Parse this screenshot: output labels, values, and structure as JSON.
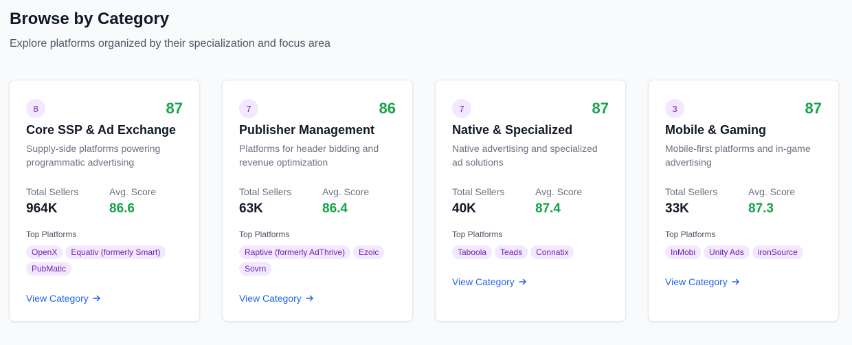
{
  "page": {
    "title": "Browse by Category",
    "subtitle": "Explore platforms organized by their specialization and focus area"
  },
  "labels": {
    "total_sellers": "Total Sellers",
    "avg_score": "Avg. Score",
    "top_platforms": "Top Platforms",
    "view_category": "View Category"
  },
  "colors": {
    "score_green": "#16a34a",
    "badge_bg": "#f3e8ff",
    "badge_text": "#6b21a8",
    "link_blue": "#2563eb"
  },
  "categories": [
    {
      "count": "8",
      "score": "87",
      "title": "Core SSP & Ad Exchange",
      "description": "Supply-side platforms powering programmatic advertising",
      "total_sellers": "964K",
      "avg_score": "86.6",
      "platforms": [
        "OpenX",
        "Equativ (formerly Smart)",
        "PubMatic"
      ]
    },
    {
      "count": "7",
      "score": "86",
      "title": "Publisher Management",
      "description": "Platforms for header bidding and revenue optimization",
      "total_sellers": "63K",
      "avg_score": "86.4",
      "platforms": [
        "Raptive (formerly AdThrive)",
        "Ezoic",
        "Sovrn"
      ]
    },
    {
      "count": "7",
      "score": "87",
      "title": "Native & Specialized",
      "description": "Native advertising and specialized ad solutions",
      "total_sellers": "40K",
      "avg_score": "87.4",
      "platforms": [
        "Taboola",
        "Teads",
        "Connatix"
      ]
    },
    {
      "count": "3",
      "score": "87",
      "title": "Mobile & Gaming",
      "description": "Mobile-first platforms and in-game advertising",
      "total_sellers": "33K",
      "avg_score": "87.3",
      "platforms": [
        "InMobi",
        "Unity Ads",
        "ironSource"
      ]
    }
  ]
}
